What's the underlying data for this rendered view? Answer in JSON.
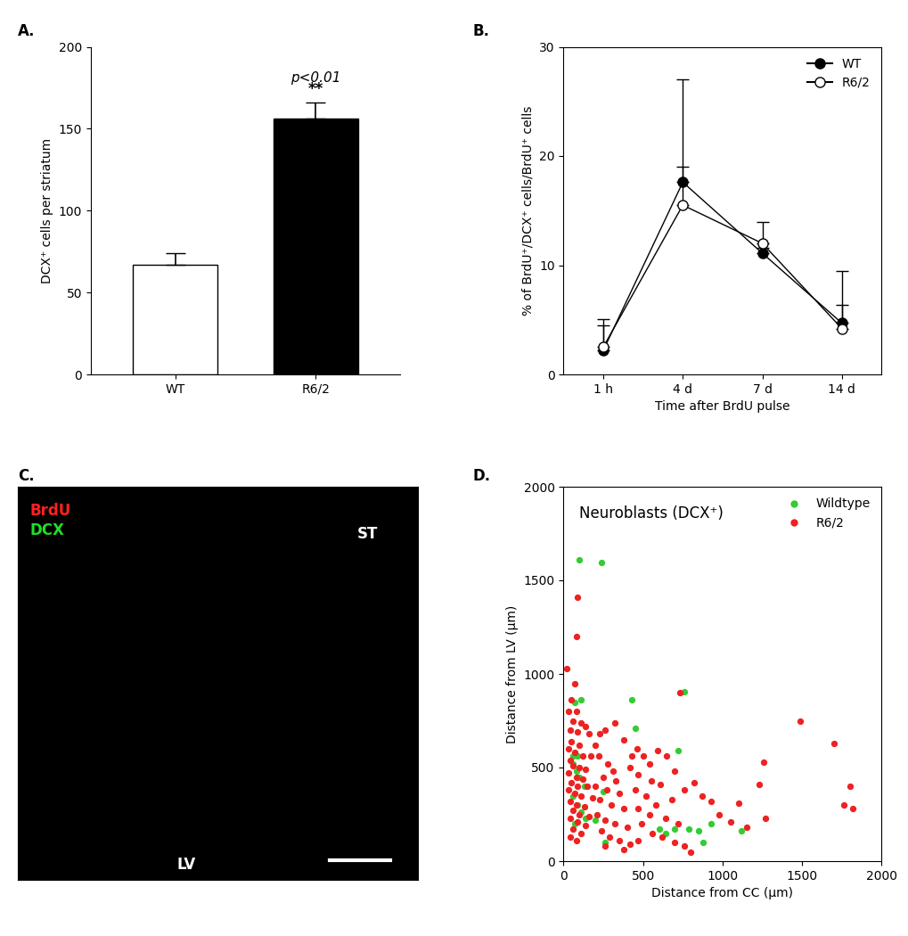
{
  "chart_data": [
    {
      "type": "bar",
      "panel": "A.",
      "categories": [
        "WT",
        "R6/2"
      ],
      "values": [
        67,
        156
      ],
      "errors": [
        7,
        10
      ],
      "colors": [
        "#ffffff",
        "#000000"
      ],
      "ylabel": "DCX⁺ cells per striatum",
      "ylim": [
        0,
        200
      ],
      "yticks": [
        0,
        50,
        100,
        150,
        200
      ],
      "annotations": [
        "p<0.01",
        "**"
      ]
    },
    {
      "type": "line",
      "panel": "B.",
      "categories": [
        "1 h",
        "4 d",
        "7 d",
        "14 d"
      ],
      "xlabel": "Time after BrdU pulse",
      "ylabel": "% of BrdU⁺/DCX⁺ cells/BrdU⁺ cells",
      "ylim": [
        0,
        30
      ],
      "yticks": [
        0,
        10,
        20,
        30
      ],
      "legend": "upper right",
      "series": [
        {
          "name": "WT",
          "color": "#000000",
          "marker": "o",
          "values": [
            2.2,
            17.6,
            11.1,
            4.7
          ],
          "errors": [
            2.3,
            9.4,
            0.5,
            4.8
          ]
        },
        {
          "name": "R6/2",
          "color": "#ffffff",
          "marker": "o",
          "values": [
            2.5,
            15.5,
            12.0,
            4.2
          ],
          "errors": [
            2.6,
            3.5,
            2.0,
            2.2
          ]
        }
      ]
    },
    {
      "type": "image",
      "panel": "C.",
      "annotations": [
        {
          "text": "BrdU",
          "color": "#ff2020"
        },
        {
          "text": "DCX",
          "color": "#20e020"
        },
        {
          "text": "ST",
          "color": "#ffffff"
        },
        {
          "text": "LV",
          "color": "#ffffff"
        }
      ]
    },
    {
      "type": "scatter",
      "panel": "D.",
      "title": "Neuroblasts (DCX⁺)",
      "xlabel": "Distance from CC (µm)",
      "ylabel": "Distance from LV (µm)",
      "xlim": [
        0,
        2000
      ],
      "xticks": [
        0,
        500,
        1000,
        1500,
        2000
      ],
      "ylim": [
        0,
        2000
      ],
      "yticks": [
        0,
        500,
        1000,
        1500,
        2000
      ],
      "legend": "upper right",
      "series": [
        {
          "name": "Wildtype",
          "color": "#33cc33",
          "x": [
            100,
            240,
            70,
            110,
            430,
            760,
            450,
            720,
            60,
            90,
            60,
            80,
            100,
            130,
            60,
            90,
            110,
            140,
            70,
            250,
            200,
            600,
            700,
            790,
            640,
            850,
            930,
            1120,
            880,
            260
          ],
          "y": [
            1610,
            1595,
            850,
            860,
            860,
            905,
            710,
            590,
            560,
            560,
            520,
            480,
            450,
            400,
            350,
            300,
            260,
            230,
            200,
            370,
            220,
            170,
            170,
            170,
            150,
            160,
            200,
            160,
            100,
            100
          ]
        },
        {
          "name": "R6/2",
          "color": "#ee2222",
          "x": [
            90,
            80,
            20,
            70,
            50,
            80,
            30,
            60,
            110,
            140,
            40,
            90,
            160,
            50,
            100,
            30,
            70,
            120,
            170,
            40,
            60,
            100,
            140,
            30,
            80,
            120,
            50,
            90,
            150,
            30,
            70,
            110,
            180,
            40,
            80,
            130,
            60,
            100,
            160,
            40,
            90,
            140,
            60,
            110,
            40,
            80,
            200,
            230,
            260,
            220,
            280,
            310,
            250,
            330,
            200,
            270,
            350,
            230,
            300,
            380,
            210,
            260,
            320,
            400,
            240,
            290,
            350,
            420,
            260,
            380,
            460,
            500,
            540,
            420,
            470,
            550,
            610,
            450,
            520,
            580,
            470,
            540,
            640,
            490,
            560,
            620,
            470,
            700,
            760,
            800,
            650,
            700,
            730,
            820,
            760,
            870,
            930,
            980,
            1050,
            1100,
            1150,
            1230,
            1260,
            1270,
            1490,
            1700,
            1760,
            1800,
            1820,
            720,
            680,
            590,
            320,
            380,
            430
          ],
          "y": [
            1410,
            1200,
            1030,
            950,
            860,
            800,
            800,
            750,
            740,
            720,
            700,
            690,
            680,
            640,
            620,
            600,
            580,
            560,
            560,
            540,
            510,
            500,
            490,
            470,
            450,
            440,
            420,
            400,
            400,
            380,
            360,
            350,
            340,
            320,
            300,
            290,
            270,
            250,
            240,
            230,
            210,
            190,
            170,
            150,
            130,
            110,
            620,
            680,
            700,
            560,
            520,
            480,
            450,
            430,
            400,
            380,
            360,
            330,
            300,
            280,
            250,
            220,
            200,
            180,
            160,
            130,
            110,
            90,
            80,
            60,
            600,
            560,
            520,
            500,
            460,
            430,
            410,
            380,
            350,
            300,
            280,
            250,
            230,
            200,
            150,
            130,
            110,
            100,
            80,
            50,
            560,
            480,
            900,
            420,
            380,
            350,
            320,
            250,
            210,
            310,
            180,
            410,
            530,
            230,
            750,
            630,
            300,
            400,
            280,
            200,
            330,
            590,
            740,
            650,
            560
          ]
        }
      ]
    }
  ]
}
